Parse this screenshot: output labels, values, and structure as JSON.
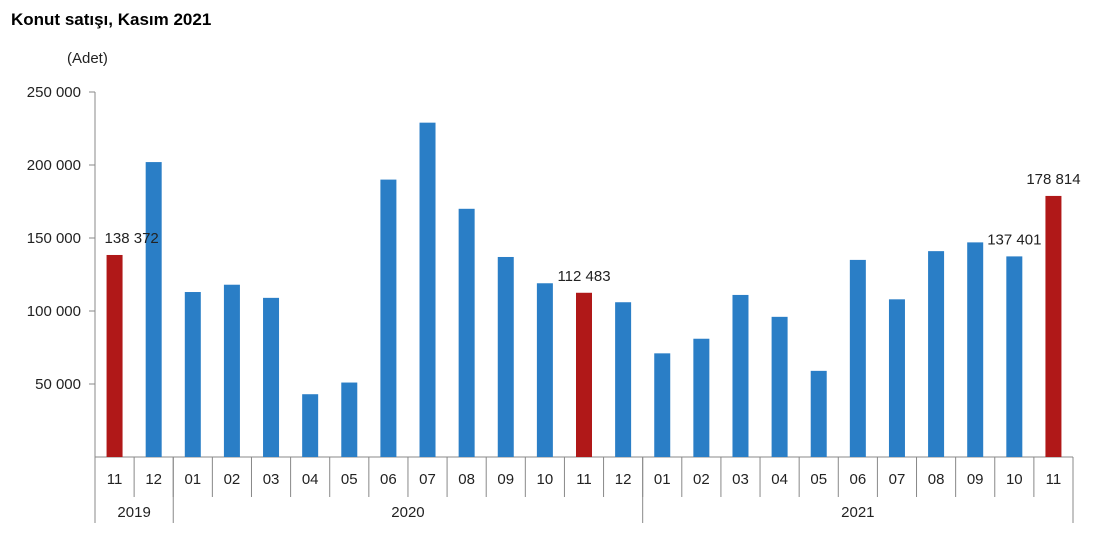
{
  "chart_data": {
    "type": "bar",
    "title": "Konut satışı, Kasım 2021",
    "ylabel": "(Adet)",
    "xlabel": "",
    "ylim": [
      0,
      250000
    ],
    "yticks": [
      50000,
      100000,
      150000,
      200000,
      250000
    ],
    "ytick_labels": [
      "50 000",
      "100 000",
      "150 000",
      "200 000",
      "250 000"
    ],
    "grid": false,
    "colors": {
      "default": "#2a7ec6",
      "highlight": "#b01818"
    },
    "categories": [
      "11",
      "12",
      "01",
      "02",
      "03",
      "04",
      "05",
      "06",
      "07",
      "08",
      "09",
      "10",
      "11",
      "12",
      "01",
      "02",
      "03",
      "04",
      "05",
      "06",
      "07",
      "08",
      "09",
      "10",
      "11"
    ],
    "years": [
      {
        "label": "2019",
        "count": 2
      },
      {
        "label": "2020",
        "count": 12
      },
      {
        "label": "2021",
        "count": 11
      }
    ],
    "values": [
      138372,
      202000,
      113000,
      118000,
      109000,
      43000,
      51000,
      190000,
      229000,
      170000,
      137000,
      119000,
      112483,
      106000,
      71000,
      81000,
      111000,
      96000,
      59000,
      135000,
      108000,
      141000,
      147000,
      137401,
      178814
    ],
    "highlight_indices": [
      0,
      12,
      24
    ],
    "data_labels": [
      {
        "index": 0,
        "text": "138 372"
      },
      {
        "index": 12,
        "text": "112 483"
      },
      {
        "index": 23,
        "text": "137 401"
      },
      {
        "index": 24,
        "text": "178 814"
      }
    ]
  }
}
